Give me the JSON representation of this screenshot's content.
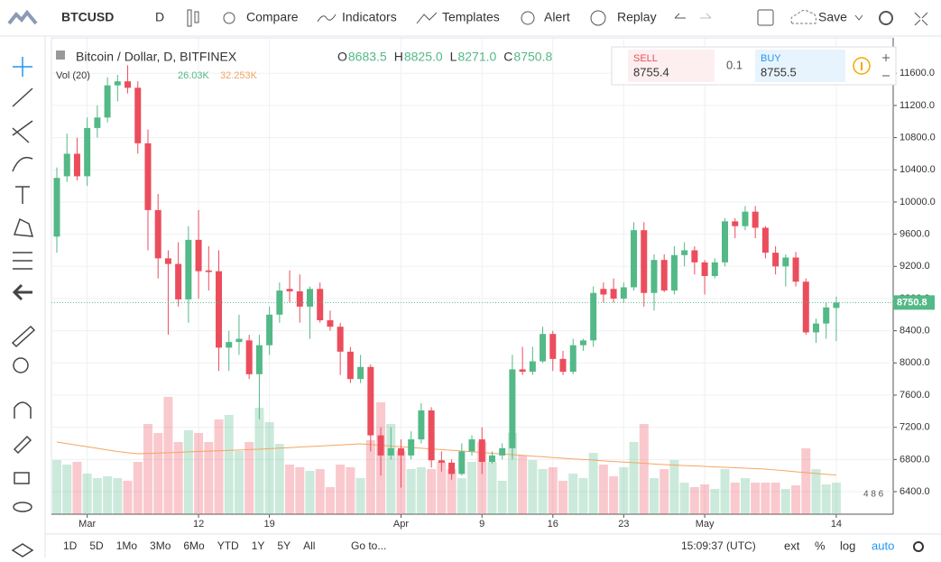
{
  "toolbar": {
    "symbol": "BTCUSD",
    "interval": "D",
    "compare": "Compare",
    "indicators": "Indicators",
    "templates": "Templates",
    "alert": "Alert",
    "replay": "Replay",
    "save": "Save"
  },
  "trade": {
    "sell_label": "SELL",
    "sell_price": 8755.4,
    "quantity": 0.1,
    "buy_label": "BUY",
    "buy_price": 8755.5
  },
  "bottom_bar": {
    "ranges": [
      "1D",
      "5D",
      "1Mo",
      "3Mo",
      "6Mo",
      "YTD",
      "1Y",
      "5Y",
      "All"
    ],
    "goto": "Go to...",
    "time": "15:09:37 (UTC)",
    "options": [
      "ext",
      "%",
      "log",
      "auto"
    ]
  },
  "chart_data": {
    "type": "candlestick",
    "title": "Bitcoin / Dollar, D, BITFINEX",
    "ohlc_labels": [
      {
        "label": "O",
        "value": "8683.5"
      },
      {
        "label": "H",
        "value": "8825.0"
      },
      {
        "label": "L",
        "value": "8271.0"
      },
      {
        "label": "C",
        "value": "8750.8"
      }
    ],
    "badge": "4 8 6",
    "categories": [
      null,
      null,
      null,
      "Mar",
      null,
      null,
      null,
      null,
      null,
      null,
      null,
      null,
      null,
      null,
      "12",
      null,
      null,
      null,
      null,
      null,
      null,
      "19",
      null,
      null,
      null,
      null,
      null,
      null,
      null,
      null,
      null,
      null,
      null,
      null,
      "Apr",
      null,
      null,
      null,
      null,
      null,
      null,
      null,
      "9",
      null,
      null,
      null,
      null,
      null,
      null,
      "16",
      null,
      null,
      null,
      null,
      null,
      null,
      "23",
      null,
      null,
      null,
      null,
      null,
      null,
      null,
      "May",
      null,
      null,
      null,
      null,
      null,
      null,
      null,
      null,
      null,
      null,
      null,
      null,
      "14"
    ],
    "open": [
      9570,
      10320,
      10600,
      10320,
      10920,
      11050,
      11450,
      11500,
      11420,
      10730,
      9900,
      9300,
      9230,
      8790,
      9530,
      9150,
      9140,
      8190,
      8260,
      8280,
      7860,
      8220,
      8600,
      8920,
      8890,
      8700,
      8920,
      8530,
      8450,
      8140,
      7800,
      7950,
      7100,
      6850,
      6940,
      6850,
      7050,
      7410,
      6790,
      6760,
      6620,
      6900,
      7050,
      6770,
      6850,
      6940,
      7920,
      7890,
      8020,
      8360,
      8050,
      7890,
      8220,
      8280,
      8920,
      8920,
      8800,
      8940,
      9650,
      8870,
      9280,
      8900,
      9340,
      9400,
      9250,
      9080,
      9250,
      9760,
      9700,
      9880,
      9680,
      9370,
      9200,
      9310,
      9010,
      8380,
      8490,
      8683.5
    ],
    "high": [
      10430,
      10850,
      10800,
      11050,
      11200,
      11550,
      11580,
      11700,
      11500,
      10900,
      10100,
      9400,
      9500,
      9700,
      9900,
      9450,
      9400,
      8400,
      8600,
      8350,
      8350,
      8700,
      9000,
      9150,
      9100,
      8950,
      9000,
      8650,
      8500,
      8200,
      8100,
      7980,
      7200,
      7200,
      7050,
      7150,
      7500,
      7450,
      6900,
      6800,
      7000,
      7100,
      7200,
      6900,
      7000,
      8100,
      8200,
      8200,
      8450,
      8400,
      8150,
      8300,
      8300,
      8950,
      9000,
      9050,
      9000,
      9750,
      9750,
      9350,
      9350,
      9450,
      9500,
      9450,
      9280,
      9300,
      9800,
      9800,
      9950,
      9950,
      9700,
      9450,
      9350,
      9380,
      9050,
      8550,
      8750,
      8825
    ],
    "low": [
      9370,
      10250,
      10270,
      10200,
      10800,
      10990,
      11250,
      11350,
      10600,
      9400,
      9050,
      8350,
      8700,
      8500,
      8800,
      8900,
      7900,
      7900,
      8100,
      7800,
      7300,
      8100,
      8500,
      8750,
      8500,
      8300,
      8500,
      8400,
      7850,
      7750,
      7750,
      6900,
      6600,
      6800,
      6450,
      6800,
      7000,
      6700,
      6650,
      6550,
      6600,
      6850,
      6620,
      6750,
      6800,
      6800,
      7850,
      7850,
      8000,
      7900,
      7850,
      7860,
      8150,
      8200,
      8750,
      8750,
      8750,
      8900,
      8700,
      8650,
      8880,
      8850,
      9200,
      9100,
      8850,
      9050,
      9200,
      9550,
      9650,
      9550,
      9300,
      9100,
      8950,
      8950,
      8350,
      8250,
      8300,
      8271
    ],
    "close": [
      10300,
      10600,
      10320,
      10920,
      11050,
      11450,
      11500,
      11420,
      10730,
      9900,
      9300,
      9230,
      8790,
      9530,
      9140,
      9130,
      8190,
      8260,
      8300,
      7860,
      8220,
      8600,
      8900,
      8890,
      8700,
      8920,
      8530,
      8450,
      8140,
      7800,
      7950,
      7100,
      6850,
      6940,
      6850,
      7050,
      7410,
      6790,
      6760,
      6620,
      6900,
      7050,
      6770,
      6850,
      6940,
      7920,
      7890,
      8020,
      8360,
      8050,
      7890,
      8220,
      8280,
      8870,
      8850,
      8800,
      8940,
      9650,
      8870,
      9280,
      8900,
      9340,
      9400,
      9250,
      9080,
      9250,
      9760,
      9700,
      9880,
      9680,
      9370,
      9200,
      9310,
      9010,
      8380,
      8490,
      8690,
      8750.8
    ],
    "up_color": "#53b987",
    "down_color": "#eb4d5c",
    "ylim": [
      6120,
      12040
    ],
    "yticks": [
      {
        "value": 6400,
        "label": "6400.0"
      },
      {
        "value": 6800,
        "label": "6800.0"
      },
      {
        "value": 7200,
        "label": "7200.0"
      },
      {
        "value": 7600,
        "label": "7600.0"
      },
      {
        "value": 8000,
        "label": "8000.0"
      },
      {
        "value": 8400,
        "label": "8400.0"
      },
      {
        "value": 8800,
        "label": "8800.0"
      },
      {
        "value": 9200,
        "label": "9200.0"
      },
      {
        "value": 9600,
        "label": "9600.0"
      },
      {
        "value": 10000,
        "label": "10000.0"
      },
      {
        "value": 10400,
        "label": "10400.0"
      },
      {
        "value": 10800,
        "label": "10800.0"
      },
      {
        "value": 11200,
        "label": "11200.0"
      },
      {
        "value": 11600,
        "label": "11600.0"
      }
    ],
    "grid": true,
    "volume": {
      "name": "Vol (20)",
      "vlim": [
        0,
        392800
      ],
      "values": [
        44640,
        40920,
        43150,
        33480,
        29760,
        31250,
        29760,
        27530,
        43150,
        74400,
        66960,
        96720,
        59520,
        69190,
        66960,
        59520,
        78120,
        81840,
        52080,
        59520,
        87790,
        75890,
        58030,
        40920,
        38690,
        35710,
        37200,
        22320,
        40920,
        38690,
        29760,
        61010,
        92260,
        74400,
        52080,
        37200,
        38690,
        37200,
        43150,
        37200,
        29760,
        43150,
        59520,
        43150,
        27530,
        66960,
        48360,
        44640,
        37200,
        38690,
        27530,
        33480,
        29760,
        50590,
        40920,
        31250,
        38690,
        59520,
        74400,
        29760,
        37200,
        44640,
        26040,
        22320,
        24550,
        20830,
        37200,
        26040,
        29760,
        26040,
        26040,
        26040,
        20830,
        23810,
        54310,
        37200,
        24550,
        26030
      ],
      "value_labels": [
        null,
        null,
        null,
        null,
        null,
        null,
        null,
        null,
        null,
        null,
        null,
        null,
        null,
        null,
        null,
        null,
        null,
        null,
        null,
        null,
        null,
        null,
        null,
        null,
        null,
        null,
        null,
        null,
        null,
        null,
        null,
        null,
        null,
        null,
        null,
        null,
        null,
        null,
        null,
        null,
        null,
        null,
        null,
        null,
        null,
        null,
        null,
        null,
        null,
        null,
        null,
        null,
        null,
        null,
        null,
        null,
        null,
        null,
        null,
        null,
        null,
        null,
        null,
        null,
        null,
        null,
        null,
        null,
        null,
        null,
        null,
        null,
        null,
        null,
        null,
        null,
        null,
        "26.03K"
      ]
    },
    "volume_ma": {
      "color": "#f5a562",
      "values": [
        59500,
        58200,
        56900,
        55600,
        54300,
        53000,
        51700,
        50700,
        49800,
        50100,
        50400,
        50700,
        51000,
        51400,
        51700,
        52000,
        52300,
        52600,
        52900,
        53300,
        53600,
        54000,
        54500,
        54900,
        55400,
        55800,
        56200,
        56700,
        57100,
        57600,
        58000,
        57400,
        56800,
        56200,
        55600,
        55000,
        54400,
        53800,
        53300,
        52700,
        52100,
        51500,
        50900,
        50300,
        49700,
        49100,
        48500,
        47900,
        47300,
        46700,
        46100,
        45600,
        45100,
        44600,
        44000,
        43500,
        43000,
        42500,
        42000,
        41400,
        40900,
        40500,
        40100,
        39800,
        39400,
        39000,
        38700,
        38300,
        37900,
        37600,
        37200,
        36500,
        35800,
        35000,
        34300,
        33600,
        32900,
        32253
      ],
      "value_labels": [
        null,
        null,
        null,
        null,
        null,
        null,
        null,
        null,
        null,
        null,
        null,
        null,
        null,
        null,
        null,
        null,
        null,
        null,
        null,
        null,
        null,
        null,
        null,
        null,
        null,
        null,
        null,
        null,
        null,
        null,
        null,
        null,
        null,
        null,
        null,
        null,
        null,
        null,
        null,
        null,
        null,
        null,
        null,
        null,
        null,
        null,
        null,
        null,
        null,
        null,
        null,
        null,
        null,
        null,
        null,
        null,
        null,
        null,
        null,
        null,
        null,
        null,
        null,
        null,
        null,
        null,
        null,
        null,
        null,
        null,
        null,
        null,
        null,
        null,
        null,
        null,
        null,
        "32.253K"
      ]
    }
  }
}
